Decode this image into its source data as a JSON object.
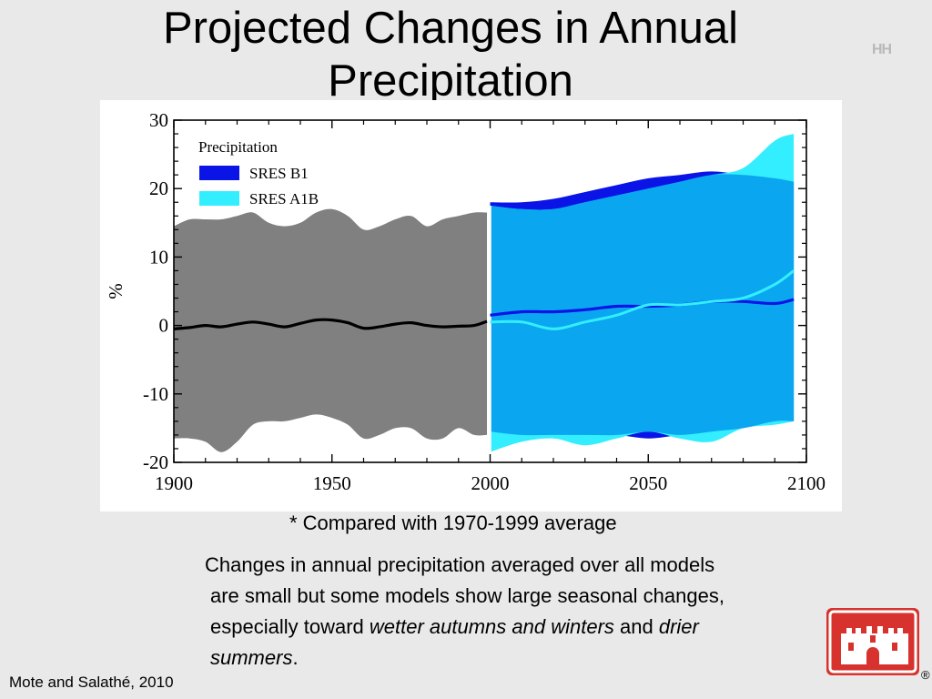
{
  "slide": {
    "title_line1": "Projected Changes in Annual",
    "title_line2": "Precipitation",
    "corner_mark": "HH",
    "note": "* Compared with 1970-1999 average",
    "paragraph": {
      "line1": "Changes in annual precipitation averaged over all models",
      "line2": "are small but some models show large seasonal changes,",
      "line3_a": "especially toward ",
      "line3_b": "wetter autumns and winters",
      "line3_c": " and ",
      "line3_d": "drier",
      "line4_a": "summers",
      "line4_b": "."
    },
    "citation": "Mote and Salathé, 2010",
    "logo_mark": "®",
    "logo_icon": "castle-icon"
  },
  "chart_data": {
    "type": "area",
    "xlabel": "",
    "ylabel": "%",
    "xlim": [
      1900,
      2100
    ],
    "ylim": [
      -20,
      30
    ],
    "xticks": [
      1900,
      1950,
      2000,
      2050,
      2100
    ],
    "yticks": [
      30,
      20,
      10,
      0,
      -10,
      -20
    ],
    "legend_title": "Precipitation",
    "legend_position": "top-left",
    "colors": {
      "historical": "#808080",
      "sres_b1": "#0a14e6",
      "sres_a1b": "#33eeff",
      "overlap": "#0aa6f0"
    },
    "historical": {
      "x": [
        1900,
        1905,
        1910,
        1915,
        1920,
        1925,
        1930,
        1935,
        1940,
        1945,
        1950,
        1955,
        1960,
        1965,
        1970,
        1975,
        1980,
        1985,
        1990,
        1995,
        1999
      ],
      "upper": [
        14.5,
        15.5,
        15.5,
        15.5,
        16,
        16.5,
        15,
        14.5,
        15,
        16.5,
        17,
        16,
        14,
        14.5,
        15.5,
        16,
        14.5,
        15.5,
        16,
        16.5,
        16.5
      ],
      "lower": [
        -16.5,
        -16.5,
        -17,
        -18.5,
        -17,
        -14.5,
        -14,
        -14,
        -13.5,
        -13,
        -13.5,
        -14.5,
        -16.5,
        -16,
        -15,
        -15,
        -16.5,
        -16.5,
        -15,
        -16,
        -16
      ],
      "mean": [
        -0.5,
        -0.3,
        0,
        -0.2,
        0.2,
        0.5,
        0.2,
        -0.2,
        0.3,
        0.8,
        0.8,
        0.4,
        -0.4,
        -0.2,
        0.2,
        0.4,
        0,
        -0.2,
        -0.1,
        0,
        0.6
      ]
    },
    "series": [
      {
        "name": "SRES B1",
        "x": [
          2000,
          2010,
          2020,
          2030,
          2040,
          2050,
          2060,
          2070,
          2080,
          2090,
          2096
        ],
        "upper": [
          18,
          18,
          18.5,
          19.5,
          20.5,
          21.5,
          22,
          22.5,
          22,
          21.5,
          21
        ],
        "lower": [
          -15.5,
          -16,
          -16,
          -16,
          -16,
          -16.5,
          -16,
          -15.5,
          -15,
          -14,
          -14
        ],
        "mean": [
          1.5,
          2,
          2,
          2.3,
          2.8,
          2.8,
          3,
          3.5,
          3.5,
          3.2,
          3.8
        ]
      },
      {
        "name": "SRES A1B",
        "x": [
          2000,
          2010,
          2020,
          2030,
          2040,
          2050,
          2060,
          2070,
          2080,
          2090,
          2096
        ],
        "upper": [
          17.5,
          17,
          17,
          18,
          19,
          20,
          21,
          22,
          23,
          27,
          28
        ],
        "lower": [
          -18.5,
          -17,
          -16.5,
          -17.5,
          -16.5,
          -15.5,
          -16.5,
          -17,
          -15,
          -14.5,
          -14
        ],
        "mean": [
          0.5,
          0.5,
          -0.5,
          0.5,
          1.5,
          3,
          3,
          3.5,
          4,
          6,
          8
        ]
      }
    ]
  }
}
